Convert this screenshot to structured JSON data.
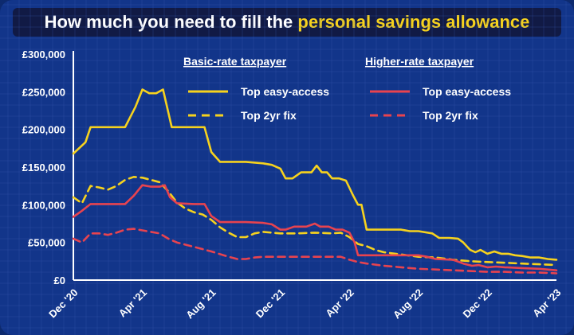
{
  "header": {
    "title_plain": "How much you need to fill the ",
    "title_highlight": "personal savings allowance"
  },
  "colors": {
    "background": "#12358a",
    "grid": "#3a5cb0",
    "basic": "#f6d21e",
    "higher": "#e8434f",
    "text": "#ffffff"
  },
  "chart_data": {
    "type": "line",
    "title": "How much you need to fill the personal savings allowance",
    "xlabel": "",
    "ylabel": "",
    "x_ticks": [
      "Dec '20",
      "Apr '21",
      "Aug '21",
      "Dec '21",
      "Apr '22",
      "Aug '22",
      "Dec '22",
      "Apr '23"
    ],
    "y_ticks": [
      "£0",
      "£50,000",
      "£100,000",
      "£150,000",
      "£200,000",
      "£250,000",
      "£300,000"
    ],
    "ylim": [
      0,
      300000
    ],
    "x_unit": "months since Dec '20",
    "xlim": [
      0,
      28
    ],
    "grid": true,
    "legend_groups": [
      "Basic-rate taxpayer",
      "Higher-rate taxpayer"
    ],
    "legend_placement": "top-right",
    "series": [
      {
        "name": "Top easy-access",
        "group": "Basic-rate taxpayer",
        "color": "#f6d21e",
        "dash": false,
        "points": [
          [
            0,
            168000
          ],
          [
            0.7,
            183000
          ],
          [
            1,
            203000
          ],
          [
            1.7,
            203000
          ],
          [
            2.5,
            203000
          ],
          [
            3,
            203000
          ],
          [
            3.6,
            230000
          ],
          [
            4,
            253000
          ],
          [
            4.4,
            248000
          ],
          [
            4.8,
            248000
          ],
          [
            5.2,
            253000
          ],
          [
            5.7,
            203000
          ],
          [
            7,
            203000
          ],
          [
            7.6,
            203000
          ],
          [
            8,
            170000
          ],
          [
            8.5,
            157000
          ],
          [
            9.5,
            157000
          ],
          [
            10,
            157000
          ],
          [
            11,
            155000
          ],
          [
            11.5,
            153000
          ],
          [
            12,
            148000
          ],
          [
            12.3,
            135000
          ],
          [
            12.7,
            135000
          ],
          [
            13.2,
            143000
          ],
          [
            13.8,
            143000
          ],
          [
            14.1,
            152000
          ],
          [
            14.4,
            143000
          ],
          [
            14.7,
            143000
          ],
          [
            15,
            135000
          ],
          [
            15.4,
            135000
          ],
          [
            15.8,
            132000
          ],
          [
            16.2,
            113000
          ],
          [
            16.5,
            100000
          ],
          [
            16.7,
            100000
          ],
          [
            17,
            67000
          ],
          [
            18,
            67000
          ],
          [
            19,
            67000
          ],
          [
            19.5,
            65000
          ],
          [
            20,
            65000
          ],
          [
            20.8,
            62000
          ],
          [
            21.2,
            56000
          ],
          [
            21.8,
            56000
          ],
          [
            22.3,
            55000
          ],
          [
            22.6,
            50000
          ],
          [
            23,
            40000
          ],
          [
            23.3,
            37000
          ],
          [
            23.6,
            40000
          ],
          [
            24,
            35000
          ],
          [
            24.4,
            38000
          ],
          [
            24.8,
            35000
          ],
          [
            25.2,
            35000
          ],
          [
            25.6,
            33000
          ],
          [
            26,
            32000
          ],
          [
            26.5,
            30000
          ],
          [
            27,
            30000
          ],
          [
            27.5,
            28000
          ],
          [
            28,
            27000
          ]
        ]
      },
      {
        "name": "Top 2yr fix",
        "group": "Basic-rate taxpayer",
        "color": "#f6d21e",
        "dash": true,
        "points": [
          [
            0,
            110000
          ],
          [
            0.5,
            102000
          ],
          [
            1,
            125000
          ],
          [
            1.5,
            123000
          ],
          [
            2,
            120000
          ],
          [
            2.5,
            125000
          ],
          [
            3,
            133000
          ],
          [
            3.5,
            137000
          ],
          [
            4,
            136000
          ],
          [
            4.5,
            133000
          ],
          [
            5,
            130000
          ],
          [
            5.5,
            118000
          ],
          [
            6,
            103000
          ],
          [
            6.5,
            95000
          ],
          [
            7,
            90000
          ],
          [
            7.5,
            87000
          ],
          [
            8,
            80000
          ],
          [
            8.5,
            70000
          ],
          [
            9,
            63000
          ],
          [
            9.5,
            57000
          ],
          [
            10,
            57000
          ],
          [
            10.5,
            62000
          ],
          [
            11,
            64000
          ],
          [
            11.5,
            63000
          ],
          [
            12,
            62000
          ],
          [
            13,
            62000
          ],
          [
            14,
            63000
          ],
          [
            15,
            62000
          ],
          [
            15.5,
            63000
          ],
          [
            16,
            57000
          ],
          [
            16.5,
            48000
          ],
          [
            17,
            45000
          ],
          [
            17.5,
            40000
          ],
          [
            18,
            37000
          ],
          [
            19,
            34000
          ],
          [
            20,
            31000
          ],
          [
            21,
            30000
          ],
          [
            22,
            27000
          ],
          [
            23,
            25000
          ],
          [
            24,
            24000
          ],
          [
            25,
            23000
          ],
          [
            26,
            22000
          ],
          [
            27,
            21000
          ],
          [
            28,
            20000
          ]
        ]
      },
      {
        "name": "Top easy-access",
        "group": "Higher-rate taxpayer",
        "color": "#e8434f",
        "dash": false,
        "points": [
          [
            0,
            84000
          ],
          [
            0.5,
            92000
          ],
          [
            1,
            101000
          ],
          [
            2.5,
            101000
          ],
          [
            3,
            101000
          ],
          [
            3.5,
            112000
          ],
          [
            4,
            126000
          ],
          [
            4.5,
            124000
          ],
          [
            5,
            124000
          ],
          [
            5.3,
            126000
          ],
          [
            5.6,
            110000
          ],
          [
            6,
            102000
          ],
          [
            7,
            101000
          ],
          [
            7.6,
            101000
          ],
          [
            8,
            85000
          ],
          [
            8.5,
            77000
          ],
          [
            10,
            77000
          ],
          [
            11,
            76000
          ],
          [
            11.5,
            74000
          ],
          [
            12,
            67000
          ],
          [
            12.3,
            67000
          ],
          [
            12.8,
            71000
          ],
          [
            13.5,
            71000
          ],
          [
            14,
            75000
          ],
          [
            14.3,
            71000
          ],
          [
            14.8,
            71000
          ],
          [
            15.2,
            67000
          ],
          [
            15.6,
            67000
          ],
          [
            16,
            63000
          ],
          [
            16.3,
            50000
          ],
          [
            16.5,
            33000
          ],
          [
            17,
            33000
          ],
          [
            19,
            33000
          ],
          [
            20,
            33000
          ],
          [
            20.5,
            31000
          ],
          [
            21,
            28000
          ],
          [
            22,
            27000
          ],
          [
            22.6,
            22000
          ],
          [
            23.1,
            19000
          ],
          [
            23.5,
            20000
          ],
          [
            24,
            17000
          ],
          [
            24.5,
            18000
          ],
          [
            25,
            17000
          ],
          [
            26,
            16000
          ],
          [
            27,
            15000
          ],
          [
            28,
            13000
          ]
        ]
      },
      {
        "name": "Top 2yr fix",
        "group": "Higher-rate taxpayer",
        "color": "#e8434f",
        "dash": true,
        "points": [
          [
            0,
            55000
          ],
          [
            0.5,
            50000
          ],
          [
            1,
            62000
          ],
          [
            1.5,
            62000
          ],
          [
            2,
            60000
          ],
          [
            2.5,
            63000
          ],
          [
            3,
            67000
          ],
          [
            3.5,
            68000
          ],
          [
            4,
            66000
          ],
          [
            4.5,
            64000
          ],
          [
            5,
            62000
          ],
          [
            5.5,
            55000
          ],
          [
            6,
            50000
          ],
          [
            7,
            44000
          ],
          [
            8,
            38000
          ],
          [
            9,
            31000
          ],
          [
            9.5,
            28000
          ],
          [
            10,
            28000
          ],
          [
            10.5,
            30000
          ],
          [
            11,
            31000
          ],
          [
            12,
            31000
          ],
          [
            13,
            31000
          ],
          [
            14,
            31000
          ],
          [
            15,
            31000
          ],
          [
            15.5,
            31000
          ],
          [
            16,
            27000
          ],
          [
            16.5,
            24000
          ],
          [
            17,
            22000
          ],
          [
            18,
            19000
          ],
          [
            19,
            17000
          ],
          [
            20,
            15000
          ],
          [
            21,
            14000
          ],
          [
            22,
            13000
          ],
          [
            23,
            12000
          ],
          [
            24,
            11000
          ],
          [
            25,
            11000
          ],
          [
            26,
            10000
          ],
          [
            27,
            10000
          ],
          [
            28,
            9000
          ]
        ]
      }
    ]
  }
}
